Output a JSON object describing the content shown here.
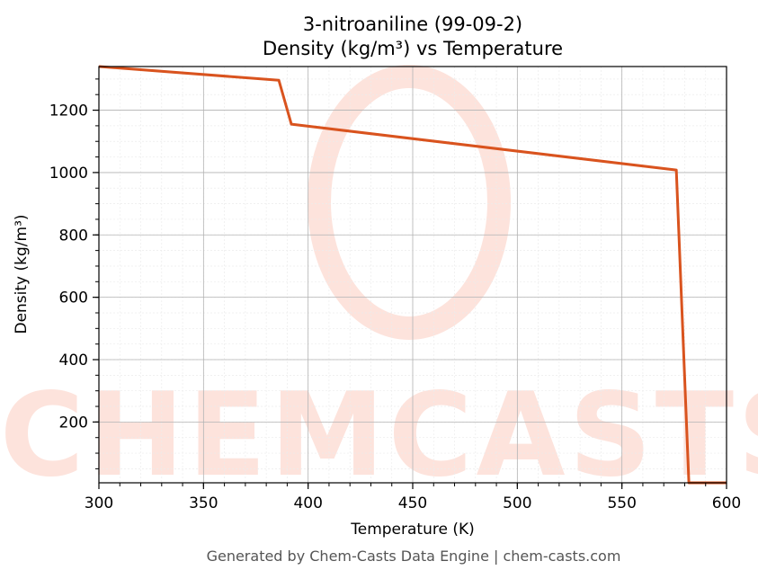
{
  "chart_data": {
    "type": "line",
    "title_line1": "3-nitroaniline (99-09-2)",
    "title_line2": "Density (kg/m³) vs Temperature",
    "xlabel": "Temperature (K)",
    "ylabel": "Density (kg/m³)",
    "xlim": [
      300,
      600
    ],
    "ylim": [
      5,
      1340
    ],
    "x_ticks": [
      300,
      350,
      400,
      450,
      500,
      550,
      600
    ],
    "y_ticks": [
      200,
      400,
      600,
      800,
      1000,
      1200
    ],
    "grid": true,
    "series": [
      {
        "color": "#d9531e",
        "x": [
          300,
          386,
          392,
          576,
          582,
          600
        ],
        "y": [
          1340,
          1296,
          1155,
          1008,
          5,
          5
        ]
      }
    ]
  },
  "watermark_text": "CHEMCASTS",
  "footer": "Generated by Chem-Casts Data Engine | chem-casts.com"
}
